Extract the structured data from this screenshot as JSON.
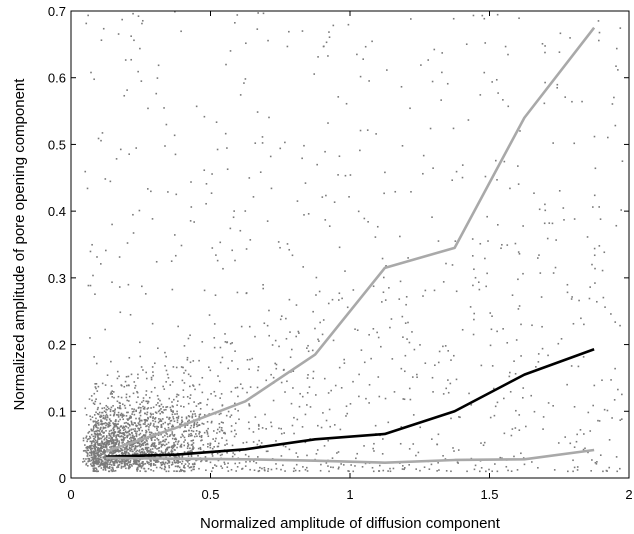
{
  "chart_data": {
    "type": "scatter",
    "xlabel": "Normalized amplitude of diffusion component",
    "ylabel": "Normalized amplitude of pore opening component",
    "xlim": [
      0,
      2
    ],
    "ylim": [
      0,
      0.7
    ],
    "xticks": [
      0,
      0.5,
      1,
      1.5,
      2
    ],
    "xtick_labels": [
      "0",
      "0.5",
      "1",
      "1.5",
      "2"
    ],
    "yticks": [
      0,
      0.1,
      0.2,
      0.3,
      0.4,
      0.5,
      0.6,
      0.7
    ],
    "ytick_labels": [
      "0",
      "0.1",
      "0.2",
      "0.3",
      "0.4",
      "0.5",
      "0.6",
      "0.7"
    ],
    "grid": false,
    "legend": "none",
    "scatter_color": "#7a7a7a",
    "series": [
      {
        "role": "upper-percentile",
        "color": "#a9a9a9",
        "x": [
          0.125,
          0.375,
          0.625,
          0.875,
          1.125,
          1.375,
          1.625,
          1.875
        ],
        "y": [
          0.04,
          0.075,
          0.115,
          0.185,
          0.315,
          0.345,
          0.54,
          0.675
        ]
      },
      {
        "role": "median",
        "color": "#000000",
        "x": [
          0.125,
          0.375,
          0.625,
          0.875,
          1.125,
          1.375,
          1.625,
          1.875
        ],
        "y": [
          0.032,
          0.035,
          0.043,
          0.058,
          0.066,
          0.1,
          0.155,
          0.193
        ]
      },
      {
        "role": "lower-percentile",
        "color": "#a9a9a9",
        "x": [
          0.125,
          0.375,
          0.625,
          0.875,
          1.125,
          1.375,
          1.625,
          1.875
        ],
        "y": [
          0.03,
          0.029,
          0.028,
          0.026,
          0.023,
          0.027,
          0.028,
          0.042
        ]
      }
    ]
  }
}
